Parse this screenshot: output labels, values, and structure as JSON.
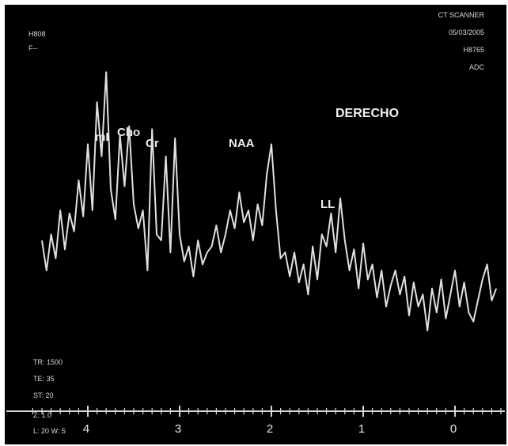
{
  "header_left": [
    "H808",
    "F--"
  ],
  "header_right": [
    "CT SCANNER",
    "05/03/2005",
    "H8765",
    "ADC"
  ],
  "footer_left": [
    "TR: 1500",
    "TE: 35",
    "ST: 20",
    "Z: 1.0",
    "L: 20 W: 5"
  ],
  "chart_data": {
    "type": "line",
    "title": "DERECHO",
    "xlabel": "",
    "ylabel": "",
    "x_axis": {
      "reversed": true,
      "ticks": [
        "4",
        "3",
        "2",
        "1",
        "0"
      ]
    },
    "ylim": [
      0,
      1
    ],
    "grid": false,
    "peaks": [
      {
        "label": "mI",
        "x": 3.56,
        "value": 0.77
      },
      {
        "label": "Cho",
        "x": 3.22,
        "value": 0.77
      },
      {
        "label": "Cr",
        "x": 3.03,
        "value": 0.74
      },
      {
        "label": "NAA",
        "x": 2.01,
        "value": 0.71
      },
      {
        "label": "LL",
        "x": 1.33,
        "value": 0.54
      }
    ],
    "series": [
      {
        "color": "#e0e0e0",
        "x": [
          4.5,
          4.45,
          4.4,
          4.35,
          4.3,
          4.25,
          4.2,
          4.15,
          4.1,
          4.05,
          4.0,
          3.95,
          3.9,
          3.85,
          3.8,
          3.75,
          3.7,
          3.65,
          3.6,
          3.55,
          3.5,
          3.45,
          3.4,
          3.35,
          3.3,
          3.25,
          3.2,
          3.15,
          3.1,
          3.05,
          3.0,
          2.95,
          2.9,
          2.85,
          2.8,
          2.75,
          2.7,
          2.65,
          2.6,
          2.55,
          2.5,
          2.45,
          2.4,
          2.35,
          2.3,
          2.25,
          2.2,
          2.15,
          2.1,
          2.05,
          2.0,
          1.95,
          1.9,
          1.85,
          1.8,
          1.75,
          1.7,
          1.65,
          1.6,
          1.55,
          1.5,
          1.45,
          1.4,
          1.35,
          1.3,
          1.25,
          1.2,
          1.15,
          1.1,
          1.05,
          1.0,
          0.95,
          0.9,
          0.85,
          0.8,
          0.75,
          0.7,
          0.65,
          0.6,
          0.55,
          0.5,
          0.45,
          0.4,
          0.35,
          0.3,
          0.25,
          0.2,
          0.15,
          0.1,
          0.05,
          0.0,
          -0.05,
          -0.1,
          -0.15,
          -0.2,
          -0.25,
          -0.3,
          -0.35,
          -0.4,
          -0.45
        ],
        "values": [
          0.4,
          0.3,
          0.42,
          0.34,
          0.5,
          0.37,
          0.49,
          0.43,
          0.6,
          0.48,
          0.72,
          0.5,
          0.86,
          0.68,
          0.96,
          0.57,
          0.47,
          0.75,
          0.58,
          0.78,
          0.52,
          0.44,
          0.5,
          0.3,
          0.77,
          0.42,
          0.4,
          0.68,
          0.36,
          0.74,
          0.42,
          0.33,
          0.38,
          0.28,
          0.4,
          0.32,
          0.36,
          0.38,
          0.45,
          0.36,
          0.42,
          0.5,
          0.44,
          0.56,
          0.46,
          0.5,
          0.4,
          0.52,
          0.45,
          0.62,
          0.72,
          0.5,
          0.34,
          0.36,
          0.28,
          0.36,
          0.26,
          0.32,
          0.22,
          0.38,
          0.27,
          0.42,
          0.38,
          0.49,
          0.36,
          0.54,
          0.4,
          0.3,
          0.37,
          0.24,
          0.39,
          0.27,
          0.32,
          0.21,
          0.3,
          0.18,
          0.25,
          0.3,
          0.22,
          0.28,
          0.15,
          0.26,
          0.18,
          0.22,
          0.1,
          0.24,
          0.16,
          0.27,
          0.14,
          0.22,
          0.3,
          0.18,
          0.26,
          0.16,
          0.13,
          0.2,
          0.27,
          0.32,
          0.2,
          0.24
        ]
      }
    ]
  }
}
